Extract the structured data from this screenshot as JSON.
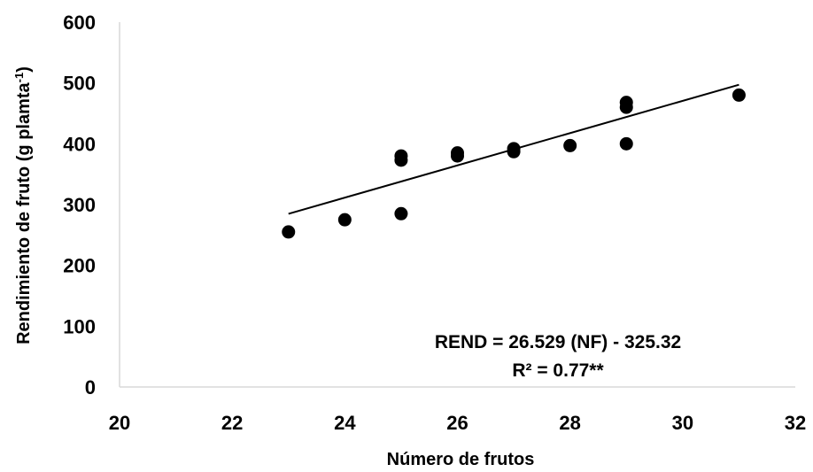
{
  "chart_data": {
    "type": "scatter",
    "xlabel": "Número de frutos",
    "ylabel": "Rendimiento de fruto (g plamta",
    "ylabel_sup": "-1",
    "ylabel_tail": ")",
    "xlim": [
      20,
      32
    ],
    "ylim": [
      0,
      600
    ],
    "xticks": [
      "20",
      "22",
      "24",
      "26",
      "28",
      "30",
      "32"
    ],
    "yticks": [
      "0",
      "100",
      "200",
      "300",
      "400",
      "500",
      "600"
    ],
    "grid": false,
    "points": [
      {
        "x": 23,
        "y": 255
      },
      {
        "x": 24,
        "y": 275
      },
      {
        "x": 25,
        "y": 285
      },
      {
        "x": 25,
        "y": 373
      },
      {
        "x": 25,
        "y": 380
      },
      {
        "x": 26,
        "y": 380
      },
      {
        "x": 26,
        "y": 385
      },
      {
        "x": 27,
        "y": 387
      },
      {
        "x": 27,
        "y": 392
      },
      {
        "x": 28,
        "y": 397
      },
      {
        "x": 29,
        "y": 400
      },
      {
        "x": 29,
        "y": 460
      },
      {
        "x": 29,
        "y": 468
      },
      {
        "x": 31,
        "y": 480
      }
    ],
    "trendline": {
      "slope": 26.529,
      "intercept": -325.32,
      "x_range": [
        23,
        31
      ]
    },
    "annotation": {
      "equation": "REND = 26.529 (NF) - 325.32",
      "r2": "R² = 0.77**"
    },
    "colors": {
      "points": "#000000",
      "line": "#000000",
      "axis": "#d9d9d9"
    }
  }
}
